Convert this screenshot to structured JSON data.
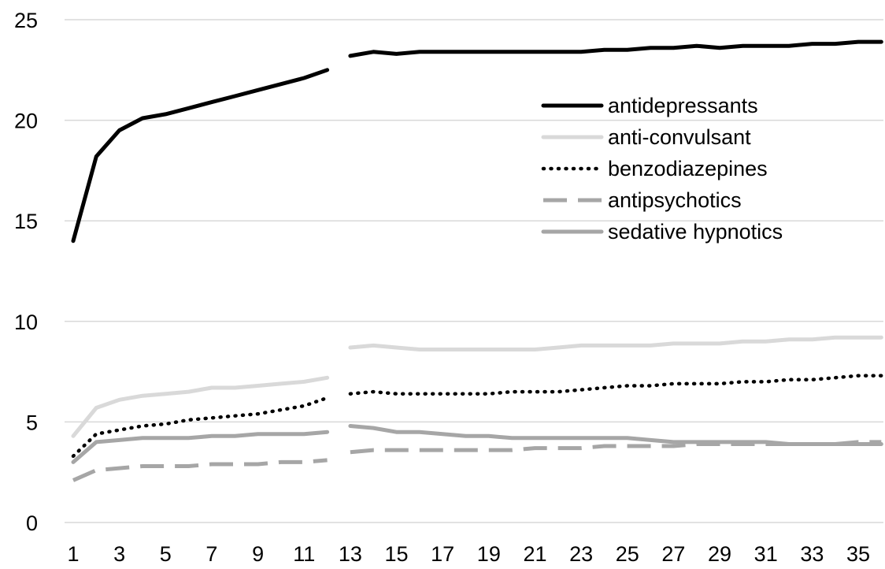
{
  "chart_data": {
    "type": "line",
    "title": "",
    "xlabel": "",
    "ylabel": "",
    "x": [
      1,
      2,
      3,
      4,
      5,
      6,
      7,
      8,
      9,
      10,
      11,
      12,
      13,
      14,
      15,
      16,
      17,
      18,
      19,
      20,
      21,
      22,
      23,
      24,
      25,
      26,
      27,
      28,
      29,
      30,
      31,
      32,
      33,
      34,
      35,
      36
    ],
    "x_tick_labels": [
      "1",
      "3",
      "5",
      "7",
      "9",
      "11",
      "13",
      "15",
      "17",
      "19",
      "21",
      "23",
      "25",
      "27",
      "29",
      "31",
      "33",
      "35"
    ],
    "y_tick_labels": [
      "0",
      "5",
      "10",
      "15",
      "20",
      "25"
    ],
    "ylim": [
      0,
      25
    ],
    "grid": "horizontal",
    "legend_position": "right",
    "gap_between": [
      12,
      13
    ],
    "series": [
      {
        "name": "antidepressants",
        "color": "#000000",
        "style": "solid-thick",
        "values": [
          14.0,
          18.2,
          19.5,
          20.1,
          20.3,
          20.6,
          20.9,
          21.2,
          21.5,
          21.8,
          22.1,
          22.5,
          23.2,
          23.4,
          23.3,
          23.4,
          23.4,
          23.4,
          23.4,
          23.4,
          23.4,
          23.4,
          23.4,
          23.5,
          23.5,
          23.6,
          23.6,
          23.7,
          23.6,
          23.7,
          23.7,
          23.7,
          23.8,
          23.8,
          23.9,
          23.9
        ]
      },
      {
        "name": "anti-convulsant",
        "color": "#d9d9d9",
        "style": "solid",
        "values": [
          4.3,
          5.7,
          6.1,
          6.3,
          6.4,
          6.5,
          6.7,
          6.7,
          6.8,
          6.9,
          7.0,
          7.2,
          8.7,
          8.8,
          8.7,
          8.6,
          8.6,
          8.6,
          8.6,
          8.6,
          8.6,
          8.7,
          8.8,
          8.8,
          8.8,
          8.8,
          8.9,
          8.9,
          8.9,
          9.0,
          9.0,
          9.1,
          9.1,
          9.2,
          9.2,
          9.2
        ]
      },
      {
        "name": "benzodiazepines",
        "color": "#000000",
        "style": "dotted",
        "values": [
          3.3,
          4.4,
          4.6,
          4.8,
          4.9,
          5.1,
          5.2,
          5.3,
          5.4,
          5.6,
          5.8,
          6.2,
          6.4,
          6.5,
          6.4,
          6.4,
          6.4,
          6.4,
          6.4,
          6.5,
          6.5,
          6.5,
          6.6,
          6.7,
          6.8,
          6.8,
          6.9,
          6.9,
          6.9,
          7.0,
          7.0,
          7.1,
          7.1,
          7.2,
          7.3,
          7.3
        ]
      },
      {
        "name": "antipsychotics",
        "color": "#a6a6a6",
        "style": "dashed",
        "values": [
          2.1,
          2.6,
          2.7,
          2.8,
          2.8,
          2.8,
          2.9,
          2.9,
          2.9,
          3.0,
          3.0,
          3.1,
          3.5,
          3.6,
          3.6,
          3.6,
          3.6,
          3.6,
          3.6,
          3.6,
          3.7,
          3.7,
          3.7,
          3.8,
          3.8,
          3.8,
          3.8,
          3.9,
          3.9,
          3.9,
          3.9,
          3.9,
          3.9,
          3.9,
          4.0,
          4.0
        ]
      },
      {
        "name": "sedative hypnotics",
        "color": "#a6a6a6",
        "style": "solid",
        "values": [
          3.0,
          4.0,
          4.1,
          4.2,
          4.2,
          4.2,
          4.3,
          4.3,
          4.4,
          4.4,
          4.4,
          4.5,
          4.8,
          4.7,
          4.5,
          4.5,
          4.4,
          4.3,
          4.3,
          4.2,
          4.2,
          4.2,
          4.2,
          4.2,
          4.2,
          4.1,
          4.0,
          4.0,
          4.0,
          4.0,
          4.0,
          3.9,
          3.9,
          3.9,
          3.9,
          3.9
        ]
      }
    ]
  }
}
